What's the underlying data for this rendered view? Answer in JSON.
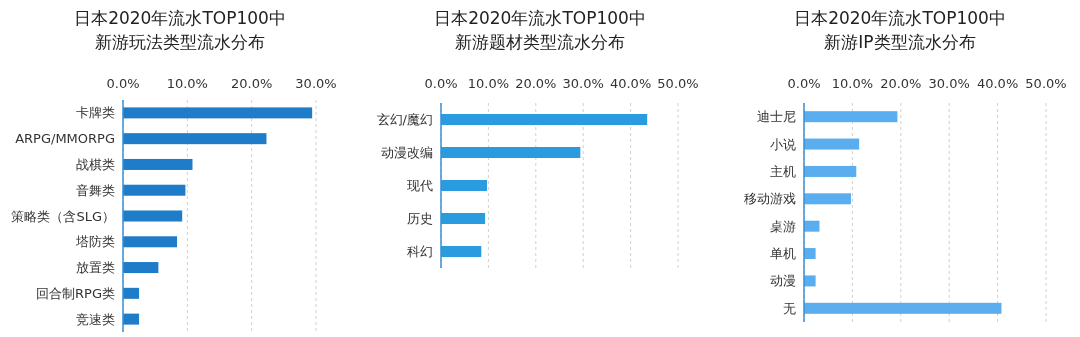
{
  "chart_data": [
    {
      "type": "bar",
      "orientation": "horizontal",
      "title": "日本2020年流水TOP100中",
      "subtitle": "新游玩法类型流水分布",
      "categories": [
        "卡牌类",
        "ARPG/MMORPG",
        "战棋类",
        "音舞类",
        "策略类（含SLG）",
        "塔防类",
        "放置类",
        "回合制RPG类",
        "竞速类"
      ],
      "values": [
        29.4,
        22.3,
        10.8,
        9.7,
        9.2,
        8.4,
        5.5,
        2.5,
        2.5
      ],
      "color": "#1f7cc8",
      "xlim": [
        0,
        30
      ],
      "xticks": [
        {
          "value": 0,
          "label": "0.0%"
        },
        {
          "value": 10,
          "label": "10.0%"
        },
        {
          "value": 20,
          "label": "20.0%"
        },
        {
          "value": 30,
          "label": "30.0%"
        }
      ],
      "grid": "x"
    },
    {
      "type": "bar",
      "orientation": "horizontal",
      "title": "日本2020年流水TOP100中",
      "subtitle": "新游题材类型流水分布",
      "categories": [
        "玄幻/魔幻",
        "动漫改编",
        "现代",
        "历史",
        "科幻"
      ],
      "values": [
        43.5,
        29.4,
        9.7,
        9.3,
        8.5
      ],
      "color": "#2b9be0",
      "xlim": [
        0,
        50
      ],
      "xticks": [
        {
          "value": 0,
          "label": "0.0%"
        },
        {
          "value": 10,
          "label": "10.0%"
        },
        {
          "value": 20,
          "label": "20.0%"
        },
        {
          "value": 30,
          "label": "30.0%"
        },
        {
          "value": 40,
          "label": "40.0%"
        },
        {
          "value": 50,
          "label": "50.0%"
        }
      ],
      "grid": "x"
    },
    {
      "type": "bar",
      "orientation": "horizontal",
      "title": "日本2020年流水TOP100中",
      "subtitle": "新游IP类型流水分布",
      "categories": [
        "迪士尼",
        "小说",
        "主机",
        "移动游戏",
        "桌游",
        "单机",
        "动漫",
        "无"
      ],
      "values": [
        19.3,
        11.4,
        10.8,
        9.7,
        3.2,
        2.4,
        2.4,
        40.8
      ],
      "color": "#5aaef0",
      "xlim": [
        0,
        50
      ],
      "xticks": [
        {
          "value": 0,
          "label": "0.0%"
        },
        {
          "value": 10,
          "label": "10.0%"
        },
        {
          "value": 20,
          "label": "20.0%"
        },
        {
          "value": 30,
          "label": "30.0%"
        },
        {
          "value": 40,
          "label": "40.0%"
        },
        {
          "value": 50,
          "label": "50.0%"
        }
      ],
      "grid": "x"
    }
  ]
}
